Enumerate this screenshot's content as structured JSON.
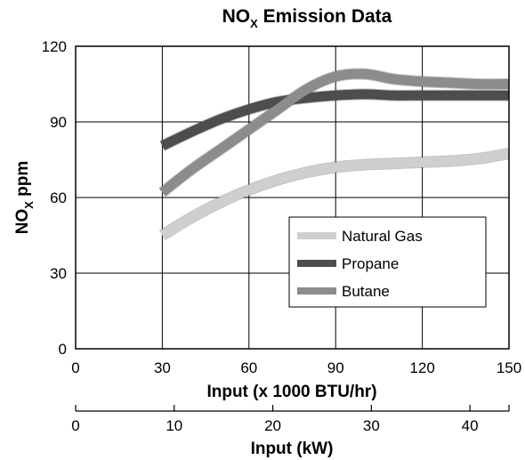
{
  "chart_data": {
    "type": "line",
    "title": {
      "main": "NO",
      "sub": "X",
      "rest": " Emission Data"
    },
    "ylabel": {
      "main": "NO",
      "sub": "X",
      "rest": " ppm"
    },
    "xlabel": "Input (x 1000 BTU/hr)",
    "x2label": "Input (kW)",
    "xlim": [
      0,
      150
    ],
    "ylim": [
      0,
      120
    ],
    "x2lim": [
      0,
      43.96
    ],
    "xticks": [
      0,
      30,
      60,
      90,
      120,
      150
    ],
    "yticks": [
      0,
      30,
      60,
      90,
      120
    ],
    "x2ticks": [
      0,
      10,
      20,
      30,
      40
    ],
    "grid": true,
    "legend_position": "center-right",
    "series": [
      {
        "name": "Natural Gas",
        "color": "#cfcfcf",
        "x": [
          30,
          40,
          50,
          60,
          70,
          80,
          90,
          100,
          110,
          120,
          130,
          140,
          150
        ],
        "y": [
          45,
          52,
          58,
          63,
          67,
          70,
          72,
          73,
          73.5,
          74,
          74.5,
          75.5,
          77.5
        ]
      },
      {
        "name": "Propane",
        "color": "#4d4d4d",
        "x": [
          30,
          40,
          50,
          60,
          70,
          80,
          90,
          100,
          110,
          120,
          130,
          140,
          150
        ],
        "y": [
          80.5,
          86,
          91,
          95,
          98,
          99.5,
          100.5,
          101,
          100.5,
          100.5,
          100.5,
          100.5,
          100.5
        ]
      },
      {
        "name": "Butane",
        "color": "#8c8c8c",
        "x": [
          30,
          40,
          50,
          60,
          70,
          80,
          90,
          100,
          110,
          120,
          130,
          140,
          150
        ],
        "y": [
          62,
          71,
          79,
          87,
          95,
          103,
          108,
          109,
          107,
          106,
          105.5,
          105,
          105
        ]
      }
    ]
  }
}
